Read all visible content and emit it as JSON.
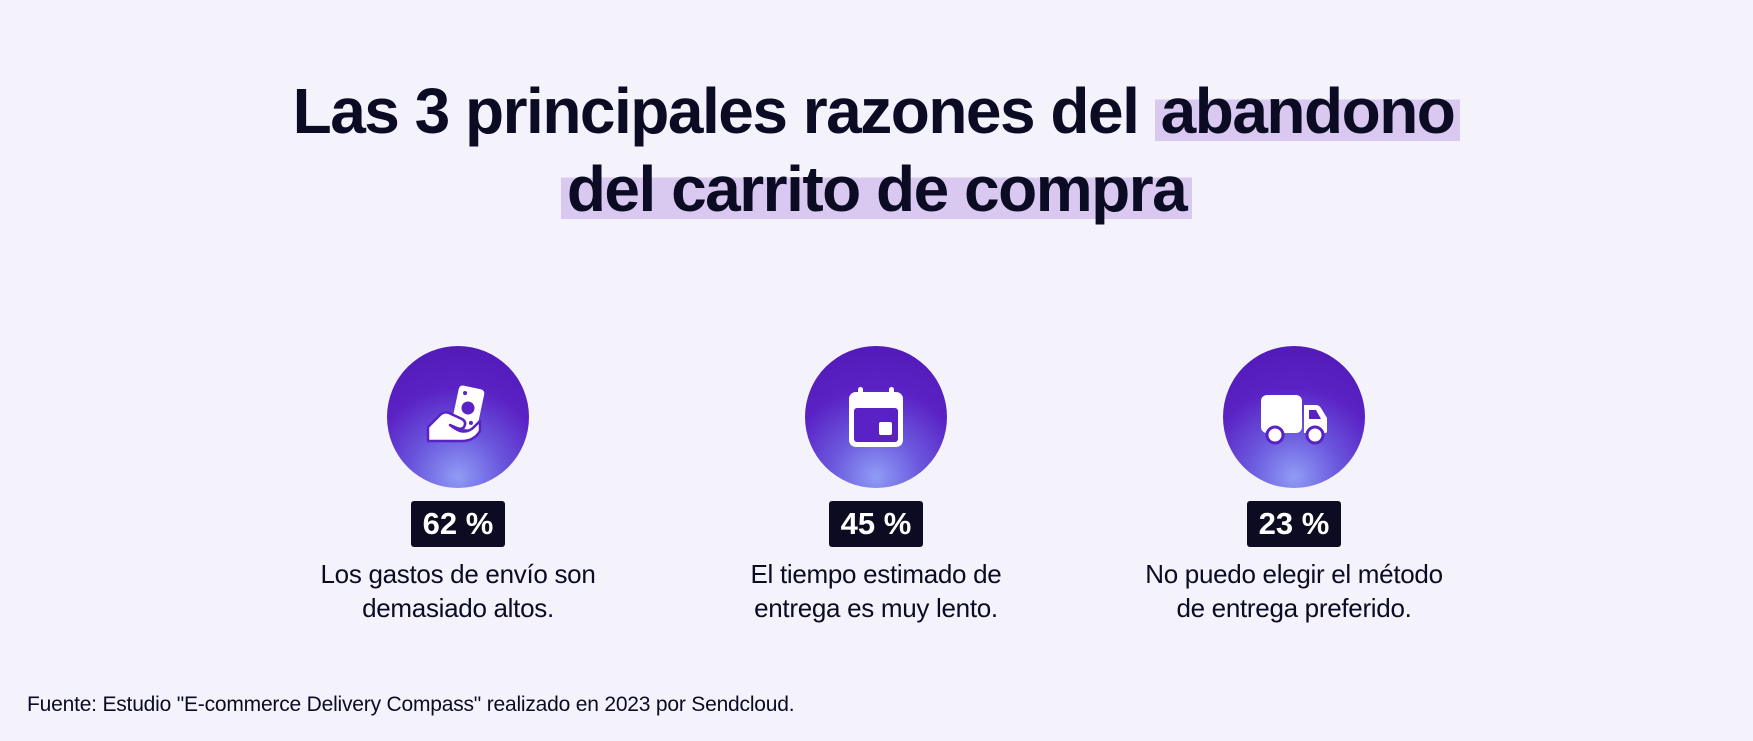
{
  "title": {
    "part1": "Las 3 principales razones del",
    "highlight1": "abandono",
    "highlight2": "del carrito de compra"
  },
  "stats": [
    {
      "icon": "hand-money-icon",
      "percent": "62 %",
      "value": 62,
      "line1": "Los gastos de envío son",
      "line2": "demasiado altos."
    },
    {
      "icon": "calendar-icon",
      "percent": "45 %",
      "value": 45,
      "line1": "El tiempo estimado de",
      "line2": "entrega es muy lento."
    },
    {
      "icon": "delivery-truck-icon",
      "percent": "23 %",
      "value": 23,
      "line1": "No puedo elegir el método",
      "line2": "de entrega preferido."
    }
  ],
  "source": "Fuente: Estudio \"E-commerce Delivery Compass\" realizado en 2023 por Sendcloud.",
  "colors": {
    "background": "#f4f2fb",
    "highlight": "#d9c8f0",
    "circle_top": "#4f18b3",
    "circle_bottom": "#8f9cf5",
    "badge": "#0d0b22",
    "text": "#0b0b24"
  }
}
